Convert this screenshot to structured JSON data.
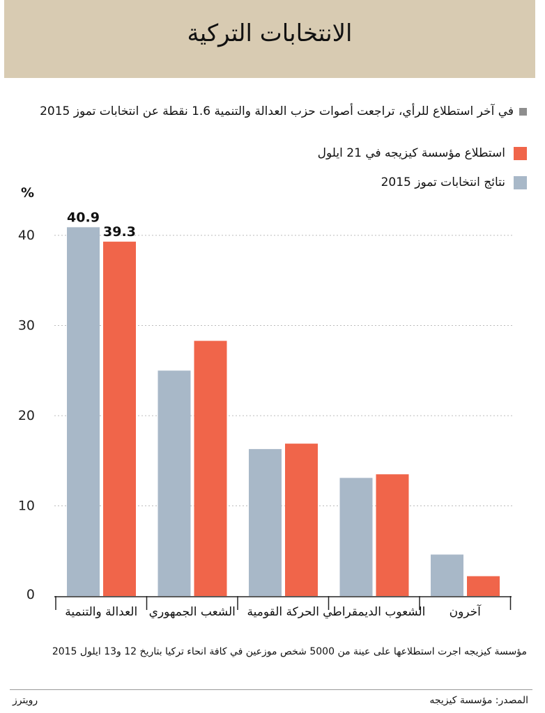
{
  "header": {
    "title": "الانتخابات التركية"
  },
  "subtitle": "في آخر استطلاع للرأي، تراجعت أصوات حزب العدالة والتنمية 1.6 نقطة عن انتخابات تموز 2015",
  "legend": [
    {
      "label": "استطلاع مؤسسة كيزيجه في 21 ايلول",
      "color": "#f0654a"
    },
    {
      "label": "نتائج انتخابات تموز 2015",
      "color": "#a8b8c8"
    }
  ],
  "colors": {
    "poll": "#f0654a",
    "election": "#a8b8c8",
    "header_bg": "#d8cbb2"
  },
  "chart_data": {
    "type": "bar",
    "ylabel": "%",
    "ylim": [
      0,
      45
    ],
    "yticks": [
      "40",
      "30",
      "20",
      "10",
      "0"
    ],
    "grid": true,
    "categories": [
      "العدالة والتنمية",
      "الشعب الجمهوري",
      "الحركة القومية",
      "الشعوب الديمقراطي",
      "آخرون"
    ],
    "series": [
      {
        "name": "نتائج انتخابات تموز 2015",
        "values": [
          40.9,
          25.0,
          16.3,
          13.1,
          4.6
        ]
      },
      {
        "name": "استطلاع مؤسسة كيزيجه في 21 ايلول",
        "values": [
          39.3,
          28.3,
          16.9,
          13.5,
          2.2
        ]
      }
    ],
    "data_labels": [
      {
        "category": 0,
        "series": 0,
        "text": "40.9"
      },
      {
        "category": 0,
        "series": 1,
        "text": "39.3"
      }
    ]
  },
  "note": "مؤسسة كيزيجه اجرت استطلاعها على عينة من 5000 شخص موزعين في كافة انحاء تركيا بتاريخ 12 و13 ايلول 2015",
  "source": "المصدر: مؤسسة كيزيجه",
  "credit": "رويترز"
}
